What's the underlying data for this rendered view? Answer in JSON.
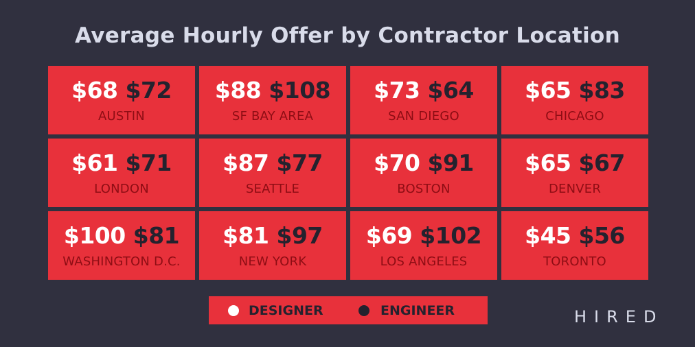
{
  "title": "Average Hourly Offer by Contractor Location",
  "tiles": [
    {
      "designer": "$68",
      "engineer": "$72",
      "city": "AUSTIN"
    },
    {
      "designer": "$88",
      "engineer": "$108",
      "city": "SF BAY AREA"
    },
    {
      "designer": "$73",
      "engineer": "$64",
      "city": "SAN DIEGO"
    },
    {
      "designer": "$65",
      "engineer": "$83",
      "city": "CHICAGO"
    },
    {
      "designer": "$61",
      "engineer": "$71",
      "city": "LONDON"
    },
    {
      "designer": "$87",
      "engineer": "$77",
      "city": "SEATTLE"
    },
    {
      "designer": "$70",
      "engineer": "$91",
      "city": "BOSTON"
    },
    {
      "designer": "$65",
      "engineer": "$67",
      "city": "DENVER"
    },
    {
      "designer": "$100",
      "engineer": "$81",
      "city": "WASHINGTON D.C."
    },
    {
      "designer": "$81",
      "engineer": "$97",
      "city": "NEW YORK"
    },
    {
      "designer": "$69",
      "engineer": "$102",
      "city": "LOS ANGELES"
    },
    {
      "designer": "$45",
      "engineer": "$56",
      "city": "TORONTO"
    }
  ],
  "legend": {
    "designer": "DESIGNER",
    "engineer": "ENGINEER"
  },
  "brand": "HIRED"
}
